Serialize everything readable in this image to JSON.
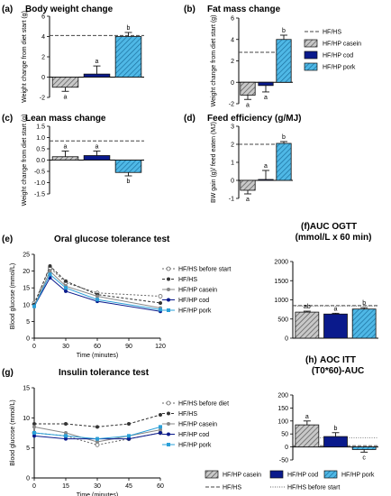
{
  "colors": {
    "casein": "#8c8c8c",
    "cod": "#0a1a8c",
    "pork": "#2ba0d8",
    "hfhs": "#444444",
    "before": "#777777"
  },
  "legend_top": {
    "items": [
      "HF/HS",
      "HF/HP casein",
      "HF/HP cod",
      "HF/HP pork"
    ]
  },
  "legend_e": {
    "items": [
      "HF/HS before start",
      "HF/HS",
      "HF/HP casein",
      "HF/HP cod",
      "HF/HP pork"
    ]
  },
  "legend_g": {
    "items": [
      "HF/HS before diet",
      "HF/HS",
      "HF/HP casein",
      "HF/HP cod",
      "HF/HP pork"
    ]
  },
  "legend_bottom": {
    "items": [
      "HF/HP casein",
      "HF/HP cod",
      "HF/HP pork",
      "HF/HS",
      "HF/HS before start"
    ]
  },
  "chart_data": [
    {
      "id": "a",
      "letter": "(a)",
      "type": "bar",
      "title": "Body weight change",
      "ylabel": "Weight change from diet start (g)",
      "ylim": [
        -2,
        6
      ],
      "yticks": [
        -2,
        0,
        2,
        4,
        6
      ],
      "categories": [
        "HF/HP casein",
        "HF/HP cod",
        "HF/HP pork"
      ],
      "values": [
        -1.0,
        0.3,
        4.0
      ],
      "errors": [
        0.4,
        0.8,
        0.4
      ],
      "sig": [
        "a",
        "a",
        "b"
      ],
      "ref_hfhs": 4.1
    },
    {
      "id": "b",
      "letter": "(b)",
      "type": "bar",
      "title": "Fat mass change",
      "ylabel": "Weight change from diet start (g)",
      "ylim": [
        -2,
        6
      ],
      "yticks": [
        -2,
        0,
        2,
        4,
        6
      ],
      "categories": [
        "HF/HP casein",
        "HF/HP cod",
        "HF/HP pork"
      ],
      "values": [
        -1.2,
        -0.3,
        4.0
      ],
      "errors": [
        0.4,
        0.6,
        0.4
      ],
      "sig": [
        "a",
        "a",
        "b"
      ],
      "ref_hfhs": 2.8
    },
    {
      "id": "c",
      "letter": "(c)",
      "type": "bar",
      "title": "Lean mass change",
      "ylabel": "Weight change from diet start (g)",
      "ylim": [
        -1.5,
        1.5
      ],
      "yticks": [
        -1.5,
        -1.0,
        -0.5,
        0.0,
        0.5,
        1.0,
        1.5
      ],
      "categories": [
        "HF/HP casein",
        "HF/HP cod",
        "HF/HP pork"
      ],
      "values": [
        0.15,
        0.2,
        -0.55
      ],
      "errors": [
        0.25,
        0.2,
        0.15
      ],
      "sig": [
        "a",
        "a",
        "b"
      ],
      "ref_hfhs": 0.85
    },
    {
      "id": "d",
      "letter": "(d)",
      "type": "bar",
      "title": "Feed efficiency (g/MJ)",
      "ylabel": "BW gain (g)/ feed eaten (MJ)",
      "ylim": [
        -1,
        3
      ],
      "yticks": [
        -1,
        0,
        1,
        2,
        3
      ],
      "categories": [
        "HF/HP casein",
        "HF/HP cod",
        "HF/HP pork"
      ],
      "values": [
        -0.55,
        0.05,
        2.05
      ],
      "errors": [
        0.2,
        0.5,
        0.1
      ],
      "sig": [
        "a",
        "a",
        "b"
      ],
      "ref_hfhs": 2.0
    },
    {
      "id": "e",
      "letter": "(e)",
      "type": "line",
      "title": "Oral glucose tolerance test",
      "xlabel": "Time (minutes)",
      "ylabel": "Blood glucose (mmol/L)",
      "ylim": [
        0,
        25
      ],
      "yticks": [
        0,
        5,
        10,
        15,
        20,
        25
      ],
      "xlim": [
        0,
        120
      ],
      "xticks": [
        0,
        30,
        60,
        90,
        120
      ],
      "x": [
        0,
        15,
        30,
        60,
        120
      ],
      "series": [
        {
          "name": "HF/HS before start",
          "values": [
            10.5,
            21.0,
            16.5,
            13.5,
            12.5
          ]
        },
        {
          "name": "HF/HS",
          "values": [
            10.0,
            21.5,
            17.0,
            13.0,
            10.5
          ]
        },
        {
          "name": "HF/HP casein",
          "values": [
            9.5,
            20.0,
            15.5,
            12.5,
            9.0
          ]
        },
        {
          "name": "HF/HP cod",
          "values": [
            9.5,
            18.0,
            14.0,
            11.0,
            8.0
          ]
        },
        {
          "name": "HF/HP pork",
          "values": [
            9.5,
            19.0,
            15.0,
            11.5,
            8.5
          ]
        }
      ]
    },
    {
      "id": "f",
      "letter": "(f)",
      "type": "bar",
      "title": "AUC OGTT",
      "subtitle": "(mmol/L x 60 min)",
      "ylim": [
        0,
        2000
      ],
      "yticks": [
        0,
        500,
        1000,
        1500,
        2000
      ],
      "categories": [
        "HF/HP casein",
        "HF/HP cod",
        "HF/HP pork"
      ],
      "values": [
        680,
        630,
        760
      ],
      "errors": [
        25,
        20,
        35
      ],
      "sig": [
        "ab",
        "a",
        "b"
      ],
      "ref_hfhs": 850,
      "ref_before": 840
    },
    {
      "id": "g",
      "letter": "(g)",
      "type": "line",
      "title": "Insulin tolerance test",
      "xlabel": "Time (minutes)",
      "ylabel": "Blood glucose (mmol/L)",
      "ylim": [
        0,
        15
      ],
      "yticks": [
        0,
        5,
        10,
        15
      ],
      "xlim": [
        0,
        60
      ],
      "xticks": [
        0,
        15,
        30,
        45,
        60
      ],
      "x": [
        0,
        15,
        30,
        45,
        60
      ],
      "series": [
        {
          "name": "HF/HS before diet",
          "values": [
            7.5,
            7.0,
            5.5,
            6.5,
            7.5
          ]
        },
        {
          "name": "HF/HS",
          "values": [
            9.0,
            9.0,
            8.5,
            9.0,
            10.5
          ]
        },
        {
          "name": "HF/HP casein",
          "values": [
            8.5,
            7.5,
            6.0,
            7.0,
            8.0
          ]
        },
        {
          "name": "HF/HP cod",
          "values": [
            7.0,
            6.5,
            6.5,
            6.5,
            7.5
          ]
        },
        {
          "name": "HF/HP pork",
          "values": [
            7.5,
            7.0,
            6.5,
            7.0,
            8.5
          ]
        }
      ]
    },
    {
      "id": "h",
      "letter": "(h)",
      "type": "bar",
      "title": "AOC ITT",
      "subtitle": "(T0*60)-AUC",
      "ylim": [
        -50,
        200
      ],
      "yticks": [
        -50,
        0,
        50,
        100,
        150,
        200
      ],
      "categories": [
        "HF/HP casein",
        "HF/HP cod",
        "HF/HP pork"
      ],
      "values": [
        85,
        40,
        -10
      ],
      "errors": [
        15,
        15,
        10
      ],
      "sig": [
        "a",
        "b",
        "c"
      ],
      "ref_hfhs": 5,
      "ref_before": 35
    }
  ]
}
